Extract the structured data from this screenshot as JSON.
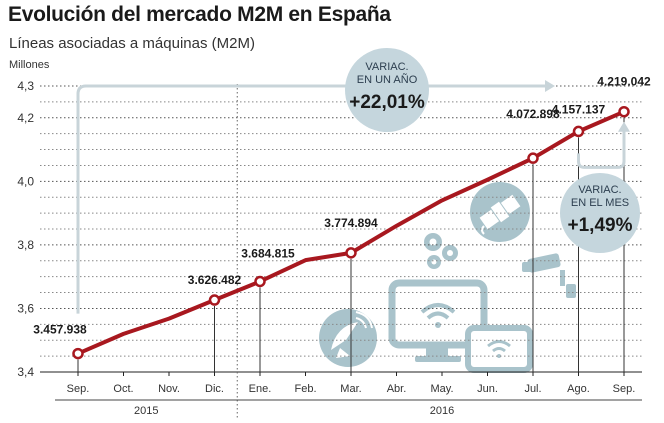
{
  "header": {
    "title": "Evolución del mercado M2M en España",
    "subtitle": "Líneas asociadas a máquinas (M2M)",
    "unit": "Millones"
  },
  "chart_data": {
    "type": "line",
    "title": "Evolución del mercado M2M en España",
    "subtitle": "Líneas asociadas a máquinas (M2M)",
    "ylabel": "Millones",
    "ylim": [
      3.4,
      4.3
    ],
    "yticks": [
      3.4,
      3.6,
      3.8,
      4.0,
      4.2,
      4.3
    ],
    "ytick_labels": [
      "3,4",
      "3,6",
      "3,8",
      "4,0",
      "4,2",
      "4,3"
    ],
    "categories": [
      "Sep.",
      "Oct.",
      "Nov.",
      "Dic.",
      "Ene.",
      "Feb.",
      "Mar.",
      "Abr.",
      "May.",
      "Jun.",
      "Jul.",
      "Ago.",
      "Sep."
    ],
    "values": [
      3.457938,
      3.52,
      3.568,
      3.626482,
      3.684815,
      3.752,
      3.774894,
      3.86,
      3.94,
      4.005,
      4.072898,
      4.157137,
      4.219042
    ],
    "years": [
      {
        "label": "2015",
        "from": 0,
        "to": 3
      },
      {
        "label": "2016",
        "from": 4,
        "to": 12
      }
    ],
    "data_labels": [
      {
        "index": 0,
        "text": "3.457.938"
      },
      {
        "index": 3,
        "text": "3.626.482"
      },
      {
        "index": 4,
        "text": "3.684.815"
      },
      {
        "index": 6,
        "text": "3.774.894"
      },
      {
        "index": 10,
        "text": "4.072.898"
      },
      {
        "index": 11,
        "text": "4.157.137"
      },
      {
        "index": 12,
        "text": "4.219.042"
      }
    ],
    "annotations": [
      {
        "id": "yearly",
        "line1": "VARIAC.",
        "line2": "EN UN AÑO",
        "value": "+22,01%"
      },
      {
        "id": "monthly",
        "line1": "VARIAC.",
        "line2": "EN EL MES",
        "value": "+1,49%"
      }
    ],
    "colors": {
      "line": "#a8181f",
      "accent": "#c5d6dd",
      "icon": "#a9c3cb",
      "arrow": "#c8d4d9"
    }
  }
}
